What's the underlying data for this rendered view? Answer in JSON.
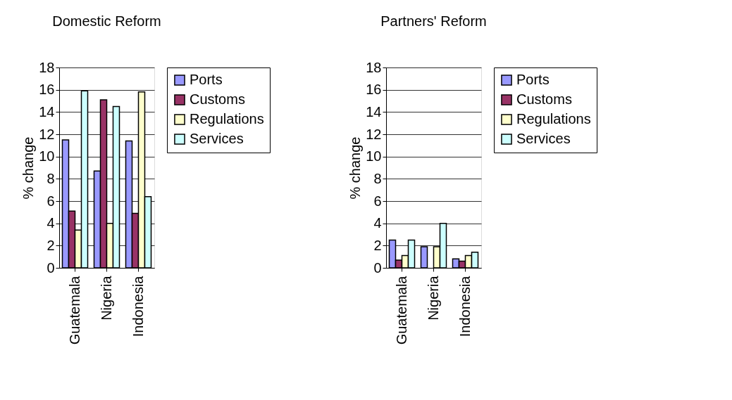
{
  "chart_data": [
    {
      "type": "bar",
      "title": "Domestic Reform",
      "ylabel": "% change",
      "categories": [
        "Guatemala",
        "Nigeria",
        "Indonesia"
      ],
      "ylim": [
        0,
        18
      ],
      "yticks": [
        0,
        2,
        4,
        6,
        8,
        10,
        12,
        14,
        16,
        18
      ],
      "grid": "y",
      "legend": "right",
      "series": [
        {
          "name": "Ports",
          "color": "#9999ff",
          "values": [
            11.5,
            8.7,
            11.4
          ]
        },
        {
          "name": "Customs",
          "color": "#993366",
          "values": [
            5.1,
            15.1,
            4.9
          ]
        },
        {
          "name": "Regulations",
          "color": "#ffffcc",
          "values": [
            3.4,
            4.0,
            15.8
          ]
        },
        {
          "name": "Services",
          "color": "#ccffff",
          "values": [
            15.9,
            14.5,
            6.4
          ]
        }
      ]
    },
    {
      "type": "bar",
      "title": "Partners' Reform",
      "ylabel": "% change",
      "categories": [
        "Guatemala",
        "Nigeria",
        "Indonesia"
      ],
      "ylim": [
        0,
        18
      ],
      "yticks": [
        0,
        2,
        4,
        6,
        8,
        10,
        12,
        14,
        16,
        18
      ],
      "grid": "y",
      "legend": "right",
      "series": [
        {
          "name": "Ports",
          "color": "#9999ff",
          "values": [
            2.5,
            1.9,
            0.8
          ]
        },
        {
          "name": "Customs",
          "color": "#993366",
          "values": [
            0.7,
            null,
            0.6
          ]
        },
        {
          "name": "Regulations",
          "color": "#ffffcc",
          "values": [
            1.1,
            1.9,
            1.1
          ]
        },
        {
          "name": "Services",
          "color": "#ccffff",
          "values": [
            2.5,
            4.0,
            1.4
          ]
        }
      ]
    }
  ]
}
